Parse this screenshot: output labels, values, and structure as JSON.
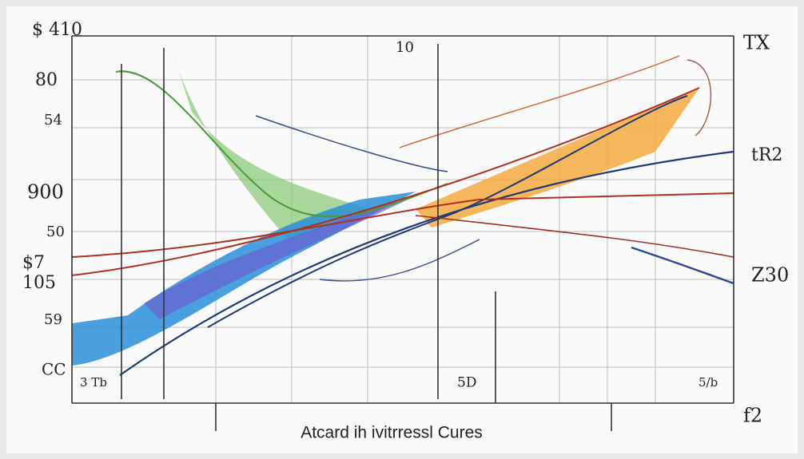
{
  "title": "Atcard ih ivitrressl Cures",
  "left_labels": [
    "$ 410",
    "80",
    "54",
    "900",
    "50",
    "$7",
    "105",
    "59",
    "CC"
  ],
  "top_labels": [
    "10",
    "TX"
  ],
  "right_labels": [
    "tR2",
    "Z30"
  ],
  "bottom_labels": [
    "3 Tb",
    "5D",
    "5/b",
    "f2"
  ]
}
